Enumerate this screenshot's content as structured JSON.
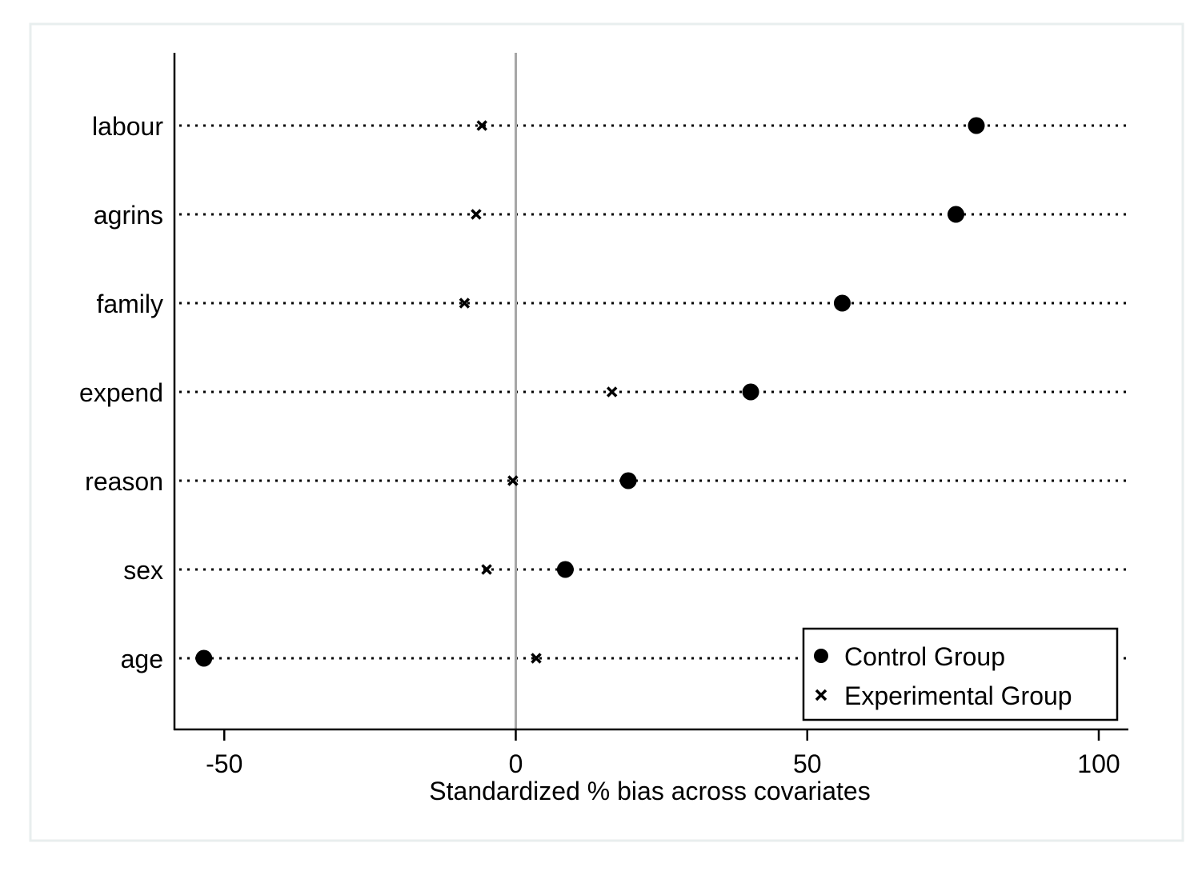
{
  "chart_data": {
    "type": "scatter",
    "title": "",
    "xlabel": "Standardized % bias across covariates",
    "ylabel": "",
    "xlim": [
      -60,
      105
    ],
    "xticks": [
      -50,
      0,
      50,
      100
    ],
    "reference_line_x": 0,
    "grid": false,
    "legend_position": "bottom-right",
    "categories": [
      "labour",
      "agrins",
      "family",
      "expend",
      "reason",
      "sex",
      "age"
    ],
    "series": [
      {
        "name": "Control Group",
        "marker": "circle",
        "values": [
          79,
          75.5,
          56,
          40.3,
          19.3,
          8.5,
          -53.5
        ]
      },
      {
        "name": "Experimental Group",
        "marker": "x",
        "values": [
          -5.8,
          -6.8,
          -8.8,
          16.5,
          -0.5,
          -5,
          3.5
        ]
      }
    ]
  },
  "colors": {
    "marker": "#000000",
    "reference_line": "#a6a6a6",
    "frame": "#e8eeee"
  }
}
